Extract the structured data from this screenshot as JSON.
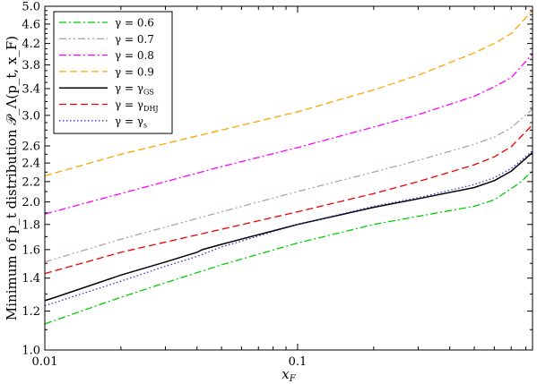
{
  "chart_data": {
    "type": "line",
    "xlabel": "x_F",
    "ylabel": "Minimum of p_t distribution 𝒫_Λ(p_t, x_F)",
    "xscale": "log",
    "yscale": "log",
    "xlim": [
      0.01,
      0.85
    ],
    "ylim": [
      1.0,
      5.0
    ],
    "x_ticks": [
      {
        "value": 0.01,
        "label": "0.01"
      },
      {
        "value": 0.1,
        "label": "0.1"
      }
    ],
    "y_ticks": [
      {
        "value": 1.0,
        "label": "1.0"
      },
      {
        "value": 1.2,
        "label": "1.2"
      },
      {
        "value": 1.4,
        "label": "1.4"
      },
      {
        "value": 1.6,
        "label": "1.6"
      },
      {
        "value": 1.8,
        "label": "1.8"
      },
      {
        "value": 2.0,
        "label": "2.0"
      },
      {
        "value": 2.2,
        "label": "2.2"
      },
      {
        "value": 2.4,
        "label": "2.4"
      },
      {
        "value": 2.6,
        "label": "2.6"
      },
      {
        "value": 3.0,
        "label": "3.0"
      },
      {
        "value": 3.4,
        "label": "3.4"
      },
      {
        "value": 3.8,
        "label": "3.8"
      },
      {
        "value": 4.2,
        "label": "4.2"
      },
      {
        "value": 4.6,
        "label": "4.6"
      },
      {
        "value": 5.0,
        "label": "5.0"
      }
    ],
    "legend_position": "top-left",
    "grid": false,
    "series": [
      {
        "name": "γ = 0.6",
        "color": "#00cc00",
        "dash": "dashdot",
        "x": [
          0.01,
          0.0105,
          0.02,
          0.03,
          0.05,
          0.1,
          0.2,
          0.3,
          0.5,
          0.6,
          0.75,
          0.85
        ],
        "y": [
          1.13,
          1.14,
          1.28,
          1.37,
          1.49,
          1.65,
          1.8,
          1.87,
          1.96,
          2.02,
          2.18,
          2.31
        ]
      },
      {
        "name": "γ = 0.7",
        "color": "#b8a0a0",
        "dash": "dashdotdot",
        "x": [
          0.01,
          0.02,
          0.05,
          0.1,
          0.2,
          0.3,
          0.5,
          0.6,
          0.7,
          0.85
        ],
        "y": [
          1.51,
          1.68,
          1.91,
          2.1,
          2.3,
          2.43,
          2.62,
          2.71,
          2.83,
          3.09
        ]
      },
      {
        "name": "γ = 0.8",
        "color": "#ff00ff",
        "dash": "dashdot",
        "x": [
          0.01,
          0.02,
          0.05,
          0.1,
          0.2,
          0.3,
          0.5,
          0.6,
          0.7,
          0.85
        ],
        "y": [
          1.89,
          2.08,
          2.36,
          2.58,
          2.84,
          3.01,
          3.28,
          3.43,
          3.58,
          4.0
        ]
      },
      {
        "name": "γ = 0.9",
        "color": "#ffa500",
        "dash": "dash",
        "x": [
          0.01,
          0.02,
          0.05,
          0.1,
          0.2,
          0.3,
          0.5,
          0.6,
          0.7,
          0.85
        ],
        "y": [
          2.26,
          2.5,
          2.8,
          3.05,
          3.38,
          3.62,
          4.02,
          4.2,
          4.4,
          4.9
        ]
      },
      {
        "name": "γ = γGS",
        "label_main": "γ = γ",
        "label_sub": "GS",
        "color": "#000000",
        "dash": "solid",
        "x": [
          0.01,
          0.011,
          0.02,
          0.03,
          0.04,
          0.042,
          0.05,
          0.1,
          0.2,
          0.3,
          0.5,
          0.6,
          0.7,
          0.85
        ],
        "y": [
          1.26,
          1.28,
          1.42,
          1.51,
          1.58,
          1.6,
          1.64,
          1.8,
          1.95,
          2.03,
          2.14,
          2.21,
          2.31,
          2.52
        ]
      },
      {
        "name": "γ = γDHJ",
        "label_main": "γ = γ",
        "label_sub": "DHJ",
        "color": "#ee0000",
        "dash": "dash",
        "x": [
          0.01,
          0.02,
          0.05,
          0.1,
          0.2,
          0.3,
          0.5,
          0.6,
          0.7,
          0.85
        ],
        "y": [
          1.43,
          1.58,
          1.76,
          1.91,
          2.08,
          2.2,
          2.38,
          2.47,
          2.59,
          2.87
        ]
      },
      {
        "name": "γ = γs",
        "label_main": "γ = γ",
        "label_sub": "s",
        "color": "#3333cc",
        "dash": "dot",
        "x": [
          0.01,
          0.02,
          0.03,
          0.04,
          0.05,
          0.1,
          0.2,
          0.3,
          0.5,
          0.6,
          0.7,
          0.85
        ],
        "y": [
          1.23,
          1.38,
          1.48,
          1.55,
          1.62,
          1.8,
          1.96,
          2.04,
          2.17,
          2.24,
          2.34,
          2.54
        ]
      }
    ]
  }
}
